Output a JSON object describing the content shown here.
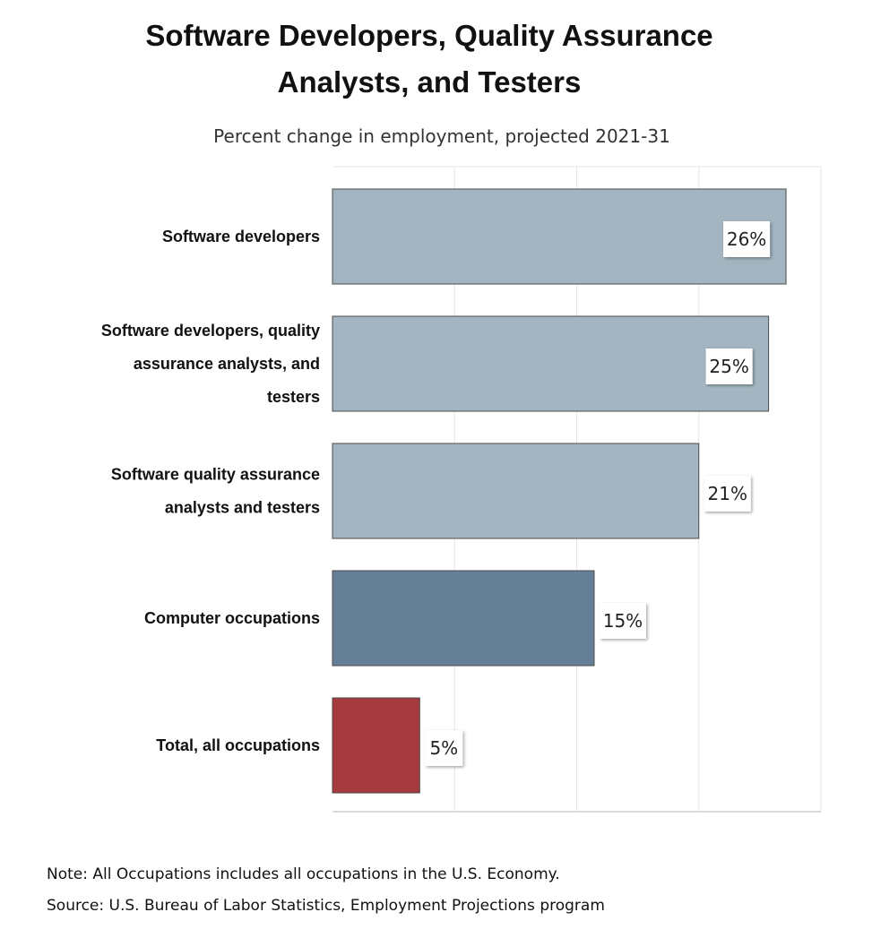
{
  "chart_data": {
    "type": "bar",
    "orientation": "horizontal",
    "title": "Software Developers, Quality Assurance Analysts, and Testers",
    "title_lines": [
      "Software Developers, Quality Assurance",
      "Analysts, and Testers"
    ],
    "subtitle": "Percent change in employment, projected 2021-31",
    "categories": [
      "Software developers",
      "Software developers, quality assurance analysts, and testers",
      "Software quality assurance analysts and testers",
      "Computer occupations",
      "Total, all occupations"
    ],
    "category_lines": [
      [
        "Software developers"
      ],
      [
        "Software developers, quality",
        "assurance analysts, and",
        "testers"
      ],
      [
        "Software quality assurance",
        "analysts and testers"
      ],
      [
        "Computer occupations"
      ],
      [
        "Total, all occupations"
      ]
    ],
    "values": [
      26,
      25,
      21,
      15,
      5
    ],
    "value_labels": [
      "26%",
      "25%",
      "21%",
      "15%",
      "5%"
    ],
    "bar_colors": [
      "#a3b5c1",
      "#a3b5c1",
      "#a3b5c1",
      "#657f97",
      "#a73a3f"
    ],
    "xlim": [
      0,
      28
    ],
    "gridlines": [
      7,
      14,
      21,
      28
    ],
    "unit": "%",
    "xlabel": "",
    "ylabel": ""
  },
  "notes": {
    "note": "Note: All Occupations includes all occupations in the U.S. Economy.",
    "source": "Source: U.S. Bureau of Labor Statistics, Employment Projections program"
  }
}
